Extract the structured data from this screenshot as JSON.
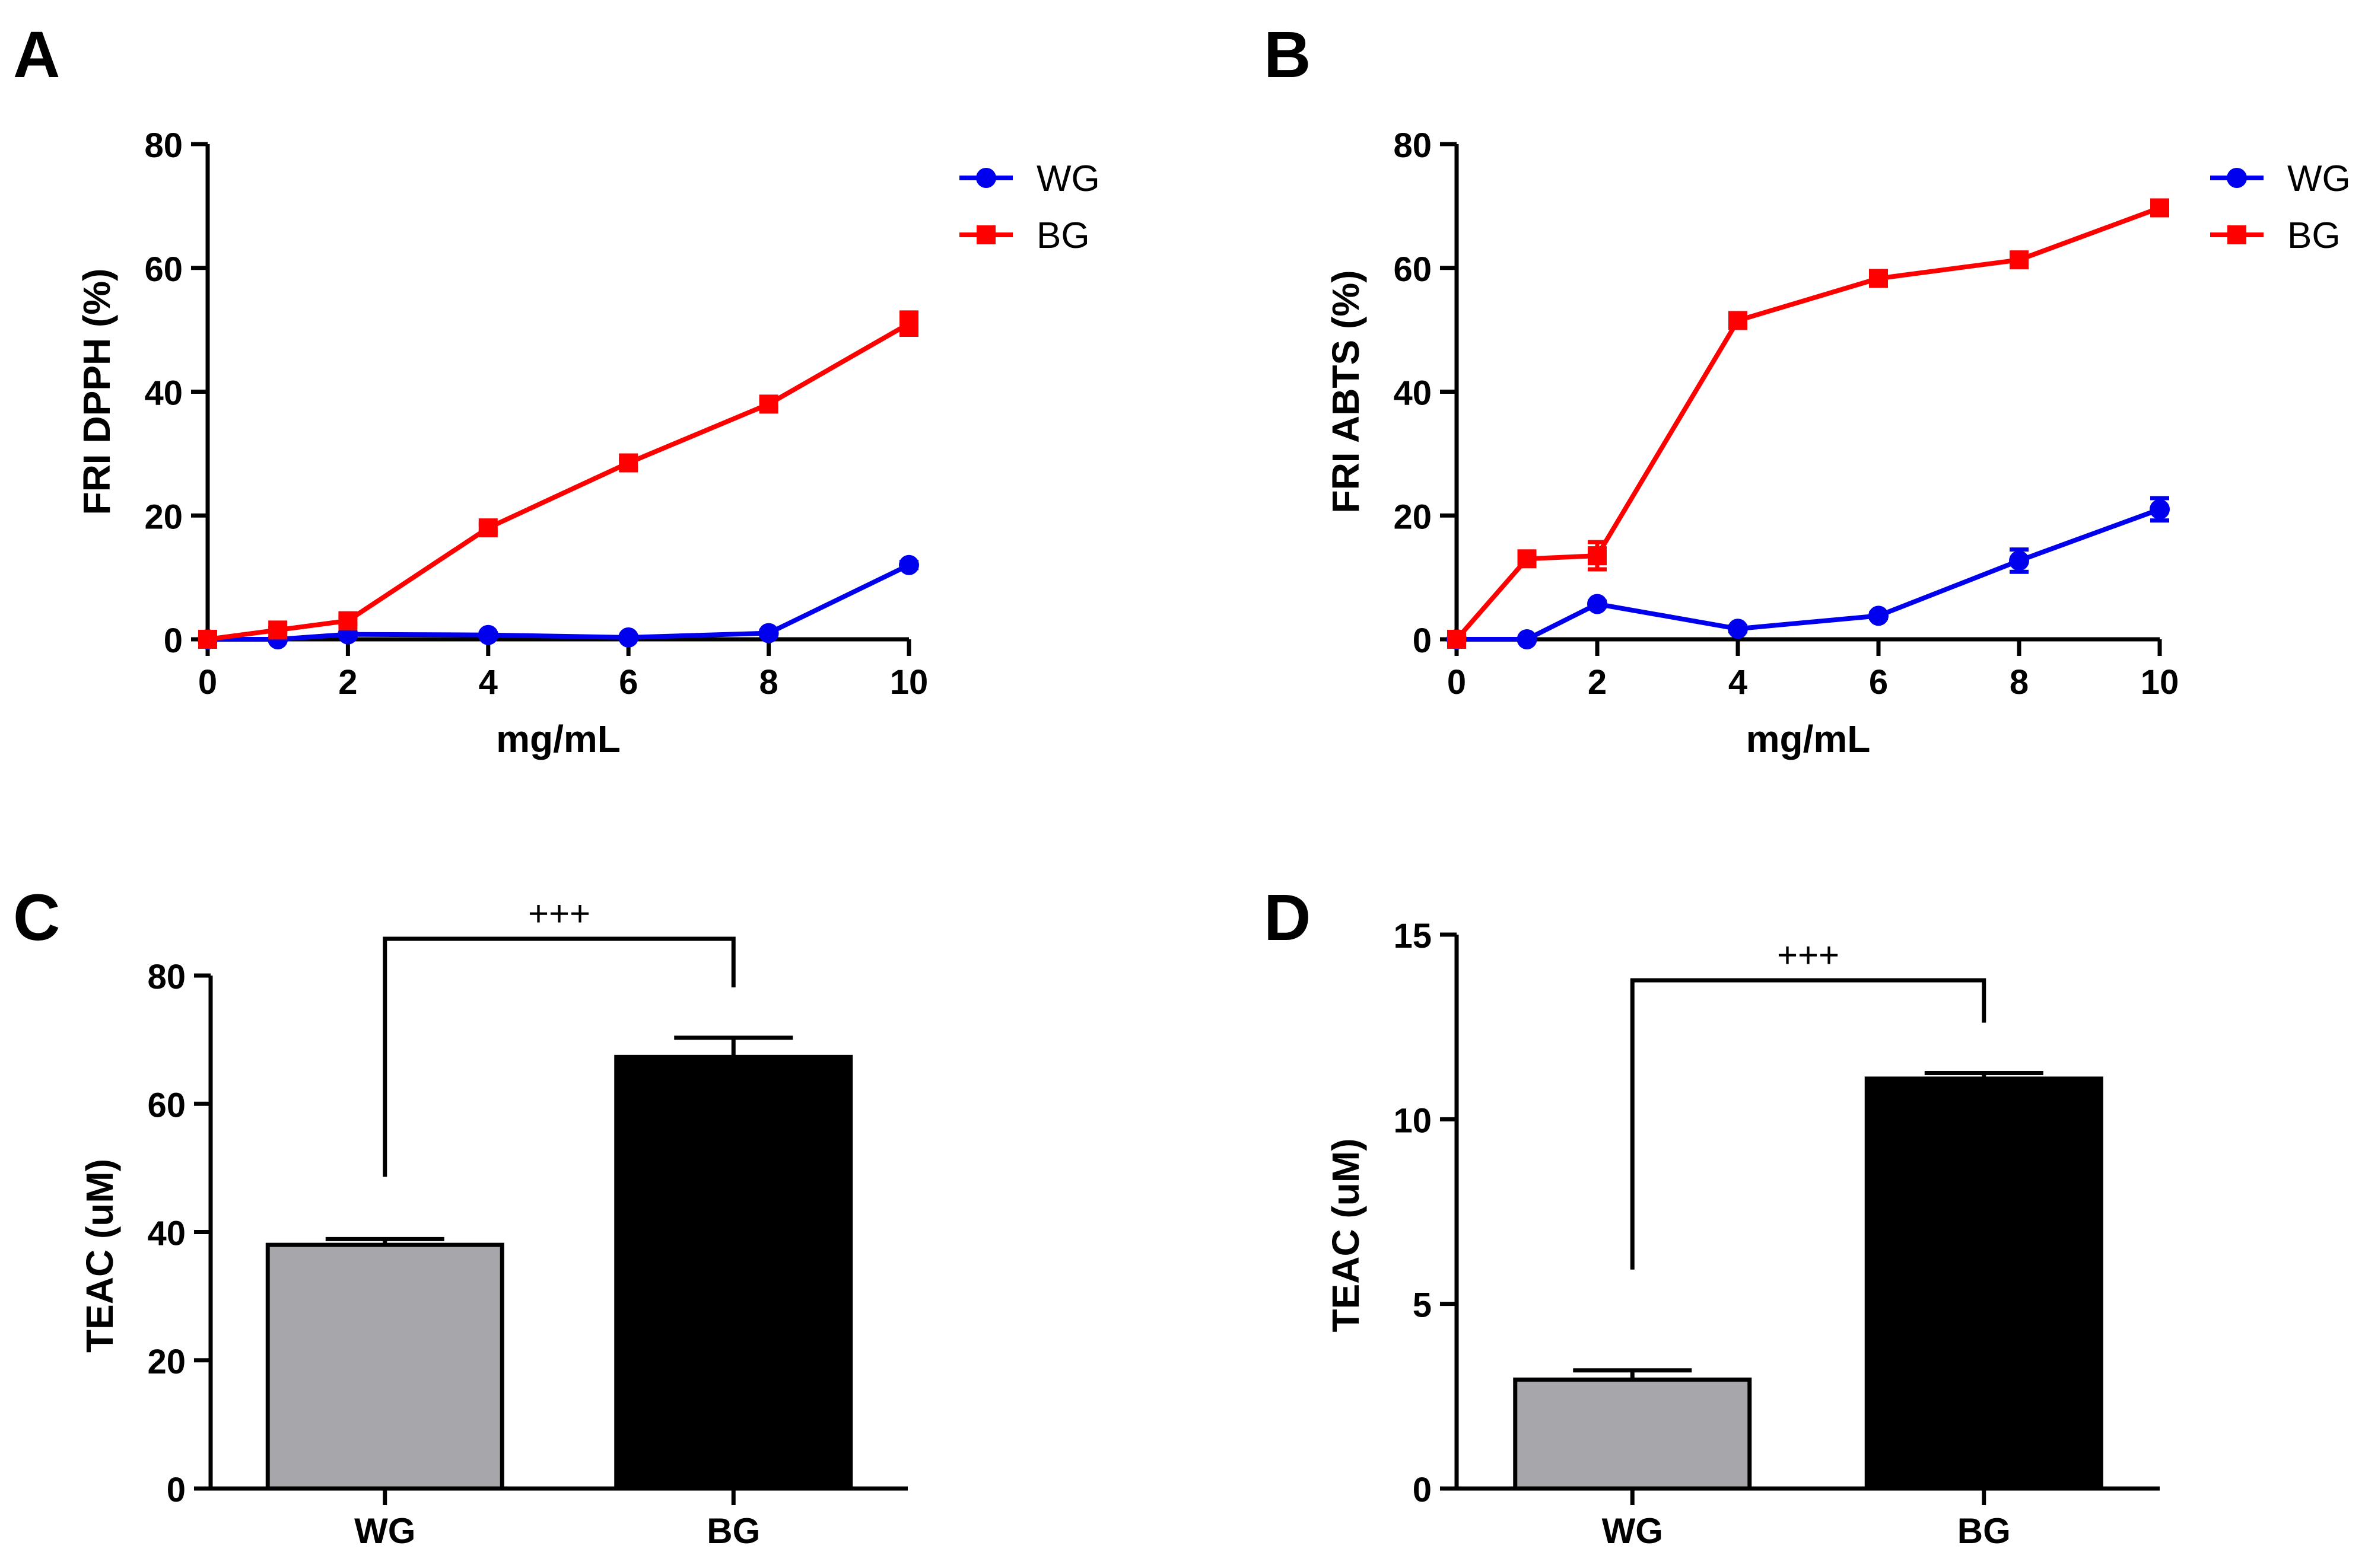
{
  "colors": {
    "WG": "#0000ee",
    "BG": "#ff0000",
    "bar_WG": "#a7a6ab",
    "bar_BG": "#000000",
    "axis": "#000000"
  },
  "panels": {
    "A": {
      "label": "A"
    },
    "B": {
      "label": "B"
    },
    "C": {
      "label": "C"
    },
    "D": {
      "label": "D"
    }
  },
  "chart_data": [
    {
      "id": "A",
      "type": "line",
      "xlabel": "mg/mL",
      "ylabel": "FRI DPPH (%)",
      "xlim": [
        0,
        10
      ],
      "ylim": [
        0,
        80
      ],
      "xticks": [
        0,
        2,
        4,
        6,
        8,
        10
      ],
      "yticks": [
        0,
        20,
        40,
        60,
        80
      ],
      "grid": false,
      "legend": "top-right",
      "x": [
        0,
        1,
        2,
        4,
        6,
        8,
        10
      ],
      "series": [
        {
          "name": "WG",
          "marker": "circle",
          "values": [
            0,
            0,
            0.8,
            0.7,
            0.3,
            1,
            12
          ],
          "errors": [
            0,
            0,
            0.3,
            0.3,
            0.2,
            0.4,
            0.5
          ]
        },
        {
          "name": "BG",
          "marker": "square",
          "values": [
            0,
            1.5,
            3,
            18,
            28.5,
            38,
            51
          ],
          "errors": [
            0,
            0.3,
            0.5,
            0.6,
            0.6,
            0.6,
            1.8
          ]
        }
      ]
    },
    {
      "id": "B",
      "type": "line",
      "xlabel": "mg/mL",
      "ylabel": "FRI ABTS (%)",
      "xlim": [
        0,
        10
      ],
      "ylim": [
        0,
        80
      ],
      "xticks": [
        0,
        2,
        4,
        6,
        8,
        10
      ],
      "yticks": [
        0,
        20,
        40,
        60,
        80
      ],
      "grid": false,
      "legend": "top-right",
      "x": [
        0,
        1,
        2,
        4,
        6,
        8,
        10
      ],
      "series": [
        {
          "name": "WG",
          "marker": "circle",
          "values": [
            0,
            0,
            5.7,
            1.7,
            3.8,
            12.7,
            21
          ],
          "errors": [
            0,
            0,
            0.4,
            0.4,
            0.4,
            1.8,
            1.8
          ]
        },
        {
          "name": "BG",
          "marker": "square",
          "values": [
            0,
            13,
            13.5,
            51.5,
            58.3,
            61.3,
            69.7
          ],
          "errors": [
            0,
            0.6,
            2.2,
            0.6,
            0.5,
            0.5,
            0.6
          ]
        }
      ]
    },
    {
      "id": "C",
      "type": "bar",
      "xlabel": "",
      "ylabel": "TEAC (uM)",
      "categories": [
        "WG",
        "BG"
      ],
      "values": [
        38,
        67.3
      ],
      "errors": [
        0.9,
        3
      ],
      "ylim": [
        0,
        80
      ],
      "yticks": [
        0,
        20,
        40,
        60,
        80
      ],
      "grid": false,
      "annotation": "+++"
    },
    {
      "id": "D",
      "type": "bar",
      "xlabel": "",
      "ylabel": "TEAC (uM)",
      "categories": [
        "WG",
        "BG"
      ],
      "values": [
        2.95,
        11.1
      ],
      "errors": [
        0.25,
        0.15
      ],
      "ylim": [
        0,
        15
      ],
      "yticks": [
        0,
        5,
        10,
        15
      ],
      "grid": false,
      "annotation": "+++"
    }
  ]
}
